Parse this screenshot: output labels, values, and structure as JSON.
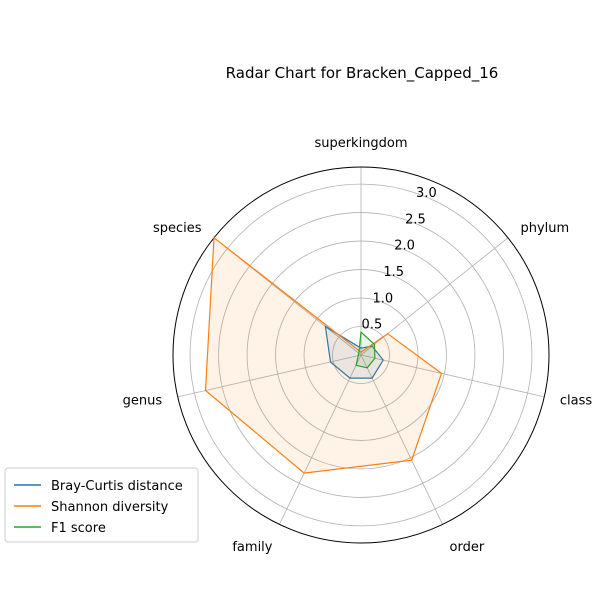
{
  "chart_data": {
    "type": "radar",
    "title": "Radar Chart for Bracken_Capped_16",
    "categories": [
      "superkingdom",
      "phylum",
      "class",
      "order",
      "family",
      "genus",
      "species"
    ],
    "rlim": [
      0,
      3.3
    ],
    "rticks": [
      0.5,
      1.0,
      1.5,
      2.0,
      2.5,
      3.0
    ],
    "rtick_labels": [
      "0.5",
      "1.0",
      "1.5",
      "2.0",
      "2.5",
      "3.0"
    ],
    "grid": true,
    "legend_position": "lower-left",
    "series": [
      {
        "name": "Bray-Curtis distance",
        "color": "#1f77b4",
        "values": [
          0.12,
          0.25,
          0.4,
          0.45,
          0.45,
          0.55,
          0.8
        ],
        "fill": false
      },
      {
        "name": "Shannon diversity",
        "color": "#ff7f0e",
        "values": [
          0.05,
          0.6,
          1.45,
          2.05,
          2.3,
          2.8,
          3.3
        ],
        "fill": true
      },
      {
        "name": "F1 score",
        "color": "#2ca02c",
        "values": [
          0.4,
          0.3,
          0.25,
          0.25,
          0.2,
          0.05,
          0.05
        ],
        "fill": false
      }
    ]
  }
}
